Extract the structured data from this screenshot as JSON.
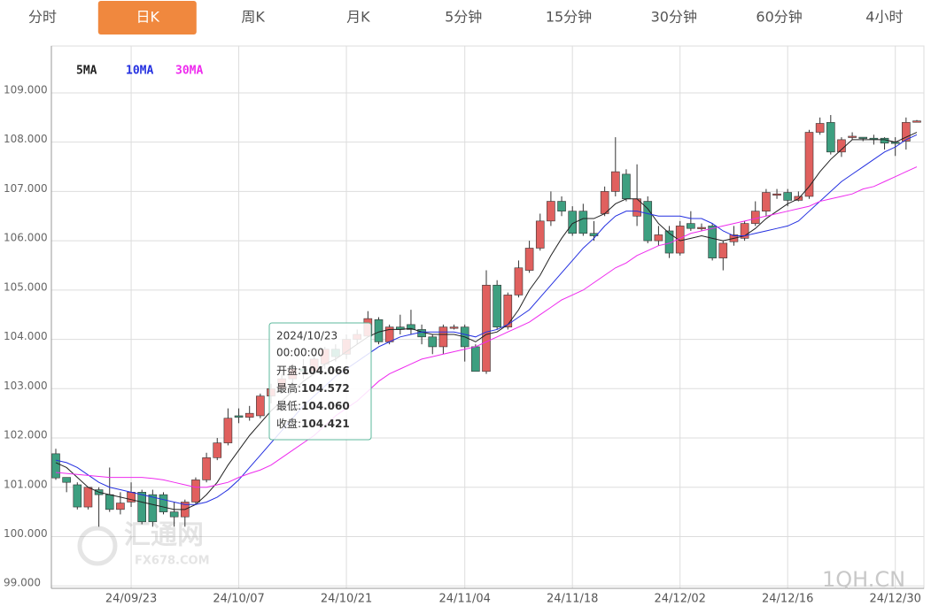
{
  "tabs": {
    "items": [
      "分时",
      "日K",
      "周K",
      "月K",
      "5分钟",
      "15分钟",
      "30分钟",
      "60分钟",
      "4小时"
    ],
    "active": 1
  },
  "chart_data": {
    "type": "candlestick",
    "categories": [
      null,
      null,
      null,
      null,
      null,
      null,
      null,
      "24/09/23",
      null,
      null,
      null,
      null,
      null,
      null,
      null,
      null,
      null,
      "24/10/07",
      null,
      null,
      null,
      null,
      null,
      null,
      null,
      null,
      null,
      "24/10/21",
      null,
      null,
      null,
      null,
      null,
      null,
      null,
      null,
      null,
      null,
      "24/11/04",
      null,
      null,
      null,
      null,
      null,
      null,
      null,
      null,
      null,
      "24/11/18",
      null,
      null,
      null,
      null,
      null,
      null,
      null,
      null,
      null,
      "24/12/02",
      null,
      null,
      null,
      null,
      null,
      null,
      null,
      null,
      null,
      "24/12/16",
      null,
      null,
      null,
      null,
      null,
      null,
      null,
      null,
      null,
      "24/12/30",
      null,
      null
    ],
    "open": [
      101.68,
      101.2,
      101.05,
      100.6,
      100.95,
      100.85,
      100.55,
      100.7,
      100.9,
      100.85,
      100.85,
      100.5,
      100.4,
      100.7,
      101.15,
      101.6,
      101.9,
      102.45,
      102.42,
      102.45,
      102.85,
      103.0,
      103.2,
      103.4,
      103.35,
      103.5,
      103.8,
      103.7,
      104.0,
      104.066,
      104.4,
      103.95,
      104.25,
      104.3,
      104.2,
      104.05,
      103.85,
      104.25,
      104.25,
      103.85,
      103.35,
      105.1,
      104.25,
      104.9,
      105.4,
      105.85,
      106.4,
      106.8,
      106.6,
      106.6,
      106.15,
      106.55,
      107.0,
      107.35,
      106.5,
      106.8,
      106.0,
      106.2,
      105.75,
      106.35,
      106.27,
      106.3,
      105.65,
      105.98,
      106.05,
      106.35,
      106.6,
      106.95,
      106.98,
      106.82,
      106.9,
      108.2,
      108.4,
      107.8,
      108.1,
      108.1,
      108.08,
      108.08,
      108.0,
      108.02,
      108.43
    ],
    "high": [
      101.78,
      101.2,
      101.1,
      101.0,
      101.0,
      101.4,
      100.9,
      101.1,
      100.95,
      100.95,
      100.9,
      100.7,
      100.75,
      101.2,
      101.7,
      102.0,
      102.6,
      102.6,
      102.65,
      102.9,
      103.1,
      103.3,
      103.5,
      103.6,
      103.7,
      103.85,
      103.9,
      104.1,
      104.2,
      104.572,
      104.45,
      104.3,
      104.5,
      104.6,
      104.3,
      104.1,
      104.3,
      104.3,
      104.3,
      103.9,
      105.4,
      105.2,
      104.95,
      105.6,
      106.0,
      106.55,
      107.0,
      106.9,
      106.7,
      106.75,
      106.4,
      107.1,
      108.1,
      107.45,
      107.55,
      106.9,
      106.3,
      106.3,
      106.4,
      106.6,
      106.35,
      106.35,
      106.0,
      106.3,
      106.4,
      106.8,
      107.05,
      107.05,
      107.05,
      107.0,
      108.25,
      108.5,
      108.55,
      108.1,
      108.2,
      108.1,
      108.15,
      108.1,
      108.1,
      108.5,
      108.45
    ],
    "low": [
      101.15,
      100.9,
      100.55,
      100.55,
      100.2,
      100.5,
      100.45,
      100.6,
      100.25,
      100.2,
      100.45,
      100.2,
      100.2,
      100.65,
      101.1,
      101.55,
      101.85,
      102.3,
      102.35,
      102.4,
      102.7,
      102.9,
      103.1,
      103.2,
      103.3,
      103.4,
      103.55,
      103.6,
      103.9,
      104.06,
      103.9,
      103.9,
      104.1,
      104.1,
      103.9,
      103.7,
      103.7,
      104.2,
      103.55,
      103.35,
      103.3,
      104.2,
      104.2,
      104.85,
      105.35,
      105.8,
      106.3,
      106.5,
      106.1,
      106.1,
      106.0,
      106.5,
      106.9,
      106.8,
      106.3,
      105.95,
      105.9,
      105.65,
      105.7,
      106.2,
      106.2,
      105.6,
      105.4,
      105.9,
      106.0,
      106.3,
      106.5,
      106.85,
      106.7,
      106.8,
      106.85,
      108.15,
      107.75,
      107.7,
      108.05,
      108.02,
      107.95,
      107.85,
      107.72,
      107.85,
      108.4
    ],
    "close": [
      101.19,
      101.1,
      100.6,
      101.0,
      100.85,
      100.55,
      100.68,
      100.9,
      100.3,
      100.3,
      100.5,
      100.4,
      100.7,
      101.15,
      101.6,
      101.9,
      102.4,
      102.42,
      102.5,
      102.85,
      103.0,
      103.2,
      103.4,
      103.35,
      103.6,
      103.8,
      103.65,
      104.0,
      104.1,
      104.421,
      103.95,
      104.25,
      104.2,
      104.2,
      104.05,
      103.85,
      104.25,
      104.25,
      103.85,
      103.35,
      105.1,
      104.25,
      104.9,
      105.45,
      105.85,
      106.4,
      106.8,
      106.6,
      106.15,
      106.15,
      106.1,
      107.0,
      107.4,
      106.85,
      106.85,
      106.0,
      106.12,
      105.75,
      106.3,
      106.25,
      106.27,
      105.65,
      105.95,
      106.12,
      106.35,
      106.6,
      106.98,
      106.95,
      106.82,
      106.9,
      108.2,
      108.38,
      107.8,
      108.05,
      108.12,
      108.08,
      108.06,
      107.98,
      107.98,
      108.4,
      108.43
    ],
    "up_color": "#e0605e",
    "down_color": "#3d9f80",
    "series": [
      {
        "name": "5MA",
        "color": "#222222",
        "values": [
          101.5,
          101.4,
          101.2,
          101.0,
          100.9,
          100.85,
          100.8,
          100.75,
          100.7,
          100.65,
          100.6,
          100.55,
          100.55,
          100.65,
          100.85,
          101.1,
          101.45,
          101.75,
          102.05,
          102.3,
          102.55,
          102.75,
          102.95,
          103.15,
          103.3,
          103.5,
          103.6,
          103.75,
          103.9,
          104.05,
          104.15,
          104.2,
          104.2,
          104.22,
          104.15,
          104.1,
          104.1,
          104.1,
          104.05,
          103.95,
          104.1,
          104.15,
          104.3,
          104.6,
          105.0,
          105.3,
          105.7,
          106.05,
          106.35,
          106.45,
          106.45,
          106.55,
          106.75,
          106.85,
          106.85,
          106.65,
          106.35,
          106.15,
          106.0,
          106.05,
          106.1,
          106.05,
          106.0,
          106.05,
          106.1,
          106.25,
          106.45,
          106.6,
          106.75,
          106.85,
          107.1,
          107.4,
          107.65,
          107.85,
          108.05,
          108.05,
          108.05,
          108.05,
          108.0,
          108.1,
          108.2
        ]
      },
      {
        "name": "10MA",
        "color": "#2430e0",
        "values": [
          101.55,
          101.5,
          101.4,
          101.25,
          101.1,
          101.0,
          100.95,
          100.9,
          100.85,
          100.8,
          100.75,
          100.7,
          100.65,
          100.65,
          100.7,
          100.8,
          100.95,
          101.15,
          101.4,
          101.65,
          101.9,
          102.15,
          102.4,
          102.65,
          102.85,
          103.05,
          103.25,
          103.4,
          103.55,
          103.7,
          103.85,
          103.95,
          104.05,
          104.1,
          104.15,
          104.15,
          104.15,
          104.15,
          104.1,
          104.05,
          104.15,
          104.2,
          104.3,
          104.45,
          104.6,
          104.85,
          105.1,
          105.35,
          105.6,
          105.85,
          106.05,
          106.3,
          106.5,
          106.6,
          106.6,
          106.55,
          106.5,
          106.5,
          106.5,
          106.45,
          106.45,
          106.35,
          106.2,
          106.1,
          106.1,
          106.15,
          106.2,
          106.25,
          106.3,
          106.4,
          106.6,
          106.8,
          107.0,
          107.2,
          107.35,
          107.5,
          107.65,
          107.8,
          107.9,
          108.05,
          108.15
        ]
      },
      {
        "name": "30MA",
        "color": "#ee2bee",
        "values": [
          101.3,
          101.28,
          101.26,
          101.24,
          101.22,
          101.2,
          101.2,
          101.2,
          101.2,
          101.18,
          101.15,
          101.1,
          101.05,
          101.0,
          101.0,
          101.05,
          101.1,
          101.2,
          101.28,
          101.35,
          101.45,
          101.6,
          101.75,
          101.9,
          102.05,
          102.25,
          102.45,
          102.6,
          102.75,
          102.95,
          103.15,
          103.3,
          103.4,
          103.5,
          103.6,
          103.65,
          103.7,
          103.75,
          103.8,
          103.85,
          103.95,
          104.05,
          104.15,
          104.25,
          104.35,
          104.5,
          104.65,
          104.8,
          104.9,
          105.0,
          105.15,
          105.3,
          105.45,
          105.55,
          105.7,
          105.8,
          105.9,
          105.95,
          106.05,
          106.15,
          106.2,
          106.25,
          106.3,
          106.35,
          106.4,
          106.45,
          106.5,
          106.55,
          106.6,
          106.65,
          106.7,
          106.8,
          106.85,
          106.9,
          106.95,
          107.05,
          107.1,
          107.2,
          107.3,
          107.4,
          107.5
        ]
      }
    ],
    "ylim": [
      98.95,
      109.95
    ],
    "yticks": [
      {
        "value": 99,
        "label": "99.000"
      },
      {
        "value": 100,
        "label": "100.000"
      },
      {
        "value": 101,
        "label": "101.000"
      },
      {
        "value": 102,
        "label": "102.000"
      },
      {
        "value": 103,
        "label": "103.000"
      },
      {
        "value": 104,
        "label": "104.000"
      },
      {
        "value": 105,
        "label": "105.000"
      },
      {
        "value": 106,
        "label": "106.000"
      },
      {
        "value": 107,
        "label": "107.000"
      },
      {
        "value": 108,
        "label": "108.000"
      },
      {
        "value": 109,
        "label": "109.000"
      }
    ],
    "grid": true,
    "tooltip": {
      "date": "2024/10/23",
      "time": "00:00:00",
      "rows": [
        {
          "label": "开盘:",
          "value": "104.066"
        },
        {
          "label": "最高:",
          "value": "104.572"
        },
        {
          "label": "最低:",
          "value": "104.060"
        },
        {
          "label": "收盘:",
          "value": "104.421"
        }
      ]
    },
    "watermarks": [
      "汇通网",
      "FX678.COM",
      "1QH.CN"
    ]
  }
}
